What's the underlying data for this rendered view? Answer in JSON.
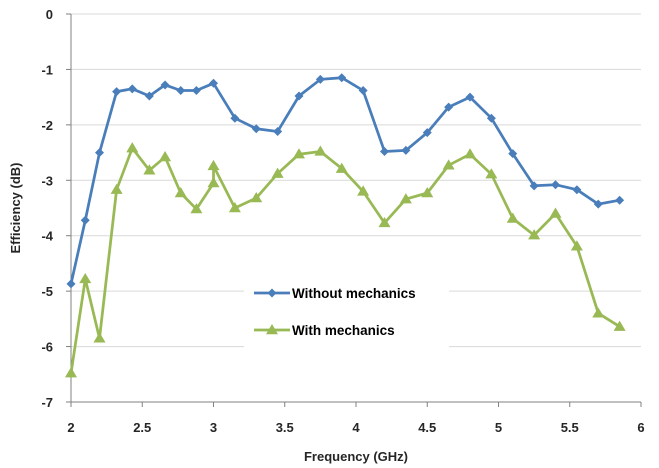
{
  "chart_data": {
    "type": "line",
    "xlabel": "Frequency (GHz)",
    "ylabel": "Efficiency (dB)",
    "xlim": [
      2,
      6
    ],
    "ylim": [
      -7,
      0
    ],
    "xticks": [
      2,
      2.5,
      3,
      3.5,
      4,
      4.5,
      5,
      5.5,
      6
    ],
    "xtick_labels": [
      "2",
      "2.5",
      "3",
      "3.5",
      "4",
      "4.5",
      "5",
      "5.5",
      "6"
    ],
    "yticks": [
      0,
      -1,
      -2,
      -3,
      -4,
      -5,
      -6,
      -7
    ],
    "ytick_labels": [
      "0",
      "-1",
      "-2",
      "-3",
      "-4",
      "-5",
      "-6",
      "-7"
    ],
    "grid": "horizontal",
    "legend_position": "center",
    "series": [
      {
        "name": "Without mechanics",
        "color": "#4a7ebb",
        "marker": "diamond",
        "x": [
          2.0,
          2.1,
          2.2,
          2.32,
          2.43,
          2.55,
          2.66,
          2.77,
          2.88,
          3.0,
          3.15,
          3.3,
          3.45,
          3.6,
          3.75,
          3.9,
          4.05,
          4.2,
          4.35,
          4.5,
          4.65,
          4.8,
          4.95,
          5.1,
          5.25,
          5.4,
          5.55,
          5.7,
          5.85
        ],
        "y": [
          -4.87,
          -3.72,
          -2.5,
          -1.4,
          -1.35,
          -1.48,
          -1.28,
          -1.38,
          -1.38,
          -1.25,
          -1.88,
          -2.07,
          -2.12,
          -1.48,
          -1.18,
          -1.15,
          -1.38,
          -2.48,
          -2.46,
          -2.14,
          -1.68,
          -1.5,
          -1.88,
          -2.52,
          -3.1,
          -3.08,
          -3.17,
          -3.43,
          -3.36
        ]
      },
      {
        "name": "With mechanics",
        "color": "#98b954",
        "marker": "triangle",
        "x": [
          2.0,
          2.1,
          2.2,
          2.32,
          2.43,
          2.55,
          2.66,
          2.77,
          2.88,
          3.0,
          3.0,
          3.15,
          3.3,
          3.45,
          3.6,
          3.75,
          3.9,
          4.05,
          4.2,
          4.35,
          4.5,
          4.65,
          4.8,
          4.95,
          5.1,
          5.25,
          5.4,
          5.55,
          5.7,
          5.85
        ],
        "y": [
          -6.48,
          -4.78,
          -5.85,
          -3.17,
          -2.42,
          -2.82,
          -2.58,
          -3.23,
          -3.52,
          -3.05,
          -2.74,
          -3.5,
          -3.32,
          -2.88,
          -2.53,
          -2.48,
          -2.79,
          -3.2,
          -3.77,
          -3.34,
          -3.23,
          -2.73,
          -2.53,
          -2.89,
          -3.69,
          -3.99,
          -3.6,
          -4.19,
          -5.4,
          -5.64
        ]
      }
    ]
  }
}
